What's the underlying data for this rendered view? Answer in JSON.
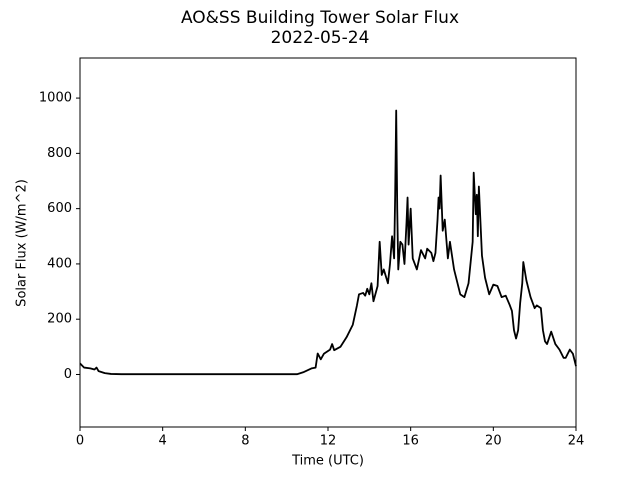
{
  "chart_data": {
    "type": "line",
    "title": "AO&SS Building Tower Solar Flux",
    "subtitle": "2022-05-24",
    "x_label": "Time (UTC)",
    "y_label": "Solar Flux (W/m^2)",
    "xlim": [
      0,
      24
    ],
    "xticks": [
      0,
      4,
      8,
      12,
      16,
      20,
      24
    ],
    "ylim": [
      -190,
      1145
    ],
    "yticks": [
      0,
      200,
      400,
      600,
      800,
      1000
    ],
    "x": [
      0,
      0.2,
      0.5,
      0.7,
      0.8,
      0.9,
      1.2,
      1.5,
      2,
      4,
      6,
      8,
      10.5,
      10.8,
      11.2,
      11.4,
      11.5,
      11.65,
      11.8,
      12.1,
      12.2,
      12.3,
      12.6,
      12.9,
      13.2,
      13.4,
      13.5,
      13.7,
      13.8,
      13.9,
      14.0,
      14.1,
      14.2,
      14.4,
      14.5,
      14.6,
      14.7,
      14.9,
      15.0,
      15.1,
      15.2,
      15.25,
      15.3,
      15.35,
      15.4,
      15.5,
      15.6,
      15.7,
      15.8,
      15.85,
      15.9,
      16.0,
      16.1,
      16.3,
      16.5,
      16.7,
      16.8,
      17.0,
      17.1,
      17.2,
      17.3,
      17.35,
      17.4,
      17.45,
      17.55,
      17.65,
      17.8,
      17.9,
      18.1,
      18.4,
      18.6,
      18.8,
      19.0,
      19.05,
      19.15,
      19.2,
      19.25,
      19.3,
      19.45,
      19.6,
      19.8,
      20.0,
      20.2,
      20.4,
      20.6,
      20.8,
      20.9,
      21.0,
      21.1,
      21.2,
      21.3,
      21.4,
      21.45,
      21.6,
      21.8,
      22.0,
      22.1,
      22.3,
      22.4,
      22.5,
      22.6,
      22.8,
      23.0,
      23.2,
      23.4,
      23.5,
      23.7,
      23.85,
      24
    ],
    "series": [
      {
        "name": "Solar Flux",
        "color": "#000000",
        "values": [
          40,
          25,
          22,
          18,
          25,
          12,
          5,
          2,
          1,
          1,
          1,
          1,
          1,
          8,
          22,
          25,
          76,
          55,
          75,
          90,
          110,
          88,
          100,
          135,
          180,
          250,
          290,
          295,
          285,
          310,
          290,
          330,
          265,
          320,
          480,
          360,
          380,
          330,
          400,
          500,
          420,
          650,
          955,
          600,
          380,
          480,
          470,
          400,
          550,
          640,
          470,
          600,
          420,
          380,
          450,
          420,
          455,
          440,
          410,
          440,
          560,
          640,
          600,
          720,
          520,
          560,
          420,
          480,
          380,
          290,
          280,
          330,
          480,
          730,
          580,
          650,
          500,
          680,
          430,
          350,
          290,
          325,
          320,
          280,
          285,
          250,
          230,
          160,
          130,
          160,
          260,
          330,
          407,
          340,
          280,
          240,
          250,
          240,
          160,
          120,
          110,
          155,
          110,
          90,
          60,
          60,
          90,
          75,
          30
        ]
      }
    ]
  }
}
